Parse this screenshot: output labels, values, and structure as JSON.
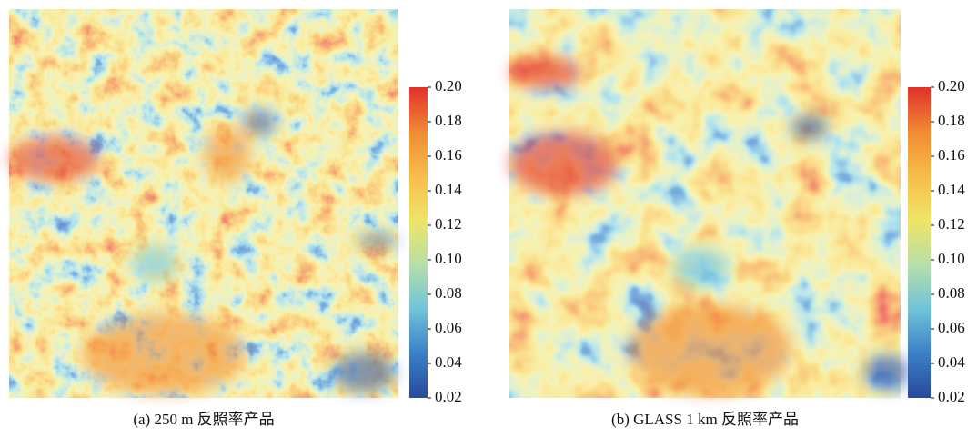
{
  "panels": [
    {
      "caption": "(a) 250 m 反照率产品",
      "colorbar": {
        "lim": [
          0.02,
          0.2
        ],
        "ticks": [
          0.02,
          0.04,
          0.06,
          0.08,
          {
            "value": 0.1,
            "label": "0.10"
          },
          0.12,
          0.14,
          0.16,
          0.18,
          {
            "value": 0.2,
            "label": "0.20"
          }
        ],
        "colormap": [
          "#2a4a9c",
          "#3b7fc4",
          "#6fc3d9",
          "#b7dfa8",
          "#efe468",
          "#f7bd4a",
          "#f18a33",
          "#e2302a"
        ]
      }
    },
    {
      "caption": "(b) GLASS 1 km 反照率产品",
      "colorbar": {
        "lim": [
          0.02,
          0.2
        ],
        "ticks": [
          0.02,
          0.04,
          0.06,
          0.08,
          {
            "value": 0.1,
            "label": "0.10"
          },
          0.12,
          0.14,
          0.16,
          0.18,
          {
            "value": 0.2,
            "label": "0.20"
          }
        ],
        "colormap": [
          "#2a4a9c",
          "#3b7fc4",
          "#6fc3d9",
          "#b7dfa8",
          "#efe468",
          "#f7bd4a",
          "#f18a33",
          "#e2302a"
        ]
      }
    }
  ]
}
